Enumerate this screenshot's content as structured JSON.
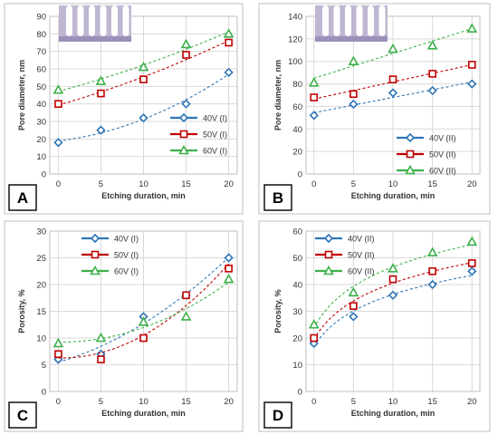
{
  "chart_data": [
    {
      "panel": "A",
      "type": "scatter",
      "xlabel": "Etching duration, min",
      "ylabel": "Pore diameter, nm",
      "xlim": [
        -1,
        21
      ],
      "ylim": [
        0,
        90
      ],
      "xticks": [
        0,
        5,
        10,
        15,
        20
      ],
      "yticks": [
        0,
        10,
        20,
        30,
        40,
        50,
        60,
        70,
        80,
        90
      ],
      "grid": true,
      "legend": "right",
      "trend": "poly",
      "series": [
        {
          "name": "40V (I)",
          "color": "#2e75b6",
          "marker": "diamond",
          "x": [
            0,
            5,
            10,
            15,
            20
          ],
          "y": [
            18,
            25,
            32,
            40,
            58
          ]
        },
        {
          "name": "50V (I)",
          "color": "#c00000",
          "marker": "square",
          "x": [
            0,
            5,
            10,
            15,
            20
          ],
          "y": [
            40,
            46,
            54,
            68,
            75
          ]
        },
        {
          "name": "60V (I)",
          "color": "#3cb04a",
          "marker": "triangle",
          "x": [
            0,
            5,
            10,
            15,
            20
          ],
          "y": [
            48,
            53,
            61,
            74,
            80
          ]
        }
      ]
    },
    {
      "panel": "B",
      "type": "scatter",
      "xlabel": "Etching duration, min",
      "ylabel": "Pore diameter, nm",
      "xlim": [
        -1,
        21
      ],
      "ylim": [
        0,
        140
      ],
      "xticks": [
        0,
        5,
        10,
        15,
        20
      ],
      "yticks": [
        0,
        20,
        40,
        60,
        80,
        100,
        120,
        140
      ],
      "grid": true,
      "legend": "bottom-right",
      "trend": "linear",
      "series": [
        {
          "name": "40V (II)",
          "color": "#2e75b6",
          "marker": "diamond",
          "x": [
            0,
            5,
            10,
            15,
            20
          ],
          "y": [
            52,
            62,
            72,
            74,
            80
          ]
        },
        {
          "name": "50V (II)",
          "color": "#c00000",
          "marker": "square",
          "x": [
            0,
            5,
            10,
            15,
            20
          ],
          "y": [
            68,
            71,
            84,
            89,
            97
          ]
        },
        {
          "name": "60V (II)",
          "color": "#3cb04a",
          "marker": "triangle",
          "x": [
            0,
            5,
            10,
            15,
            20
          ],
          "y": [
            81,
            100,
            111,
            114,
            129
          ]
        }
      ]
    },
    {
      "panel": "C",
      "type": "scatter",
      "xlabel": "Etching duration, min",
      "ylabel": "Porosity, %",
      "xlim": [
        -1,
        21
      ],
      "ylim": [
        0,
        30
      ],
      "xticks": [
        0,
        5,
        10,
        15,
        20
      ],
      "yticks": [
        0,
        5,
        10,
        15,
        20,
        25,
        30
      ],
      "grid": true,
      "legend": "top-left",
      "trend": "poly",
      "series": [
        {
          "name": "40V (I)",
          "color": "#2e75b6",
          "marker": "diamond",
          "x": [
            0,
            5,
            10,
            15,
            20
          ],
          "y": [
            6,
            7,
            14,
            18,
            25
          ]
        },
        {
          "name": "50V (I)",
          "color": "#c00000",
          "marker": "square",
          "x": [
            0,
            5,
            10,
            15,
            20
          ],
          "y": [
            7,
            6,
            10,
            18,
            23
          ]
        },
        {
          "name": "60V (I)",
          "color": "#3cb04a",
          "marker": "triangle",
          "x": [
            0,
            5,
            10,
            15,
            20
          ],
          "y": [
            9,
            10,
            13,
            14,
            21
          ]
        }
      ]
    },
    {
      "panel": "D",
      "type": "scatter",
      "xlabel": "Etching duration, min",
      "ylabel": "Porosity, %",
      "xlim": [
        -1,
        21
      ],
      "ylim": [
        0,
        60
      ],
      "xticks": [
        0,
        5,
        10,
        15,
        20
      ],
      "yticks": [
        0,
        10,
        20,
        30,
        40,
        50,
        60
      ],
      "grid": true,
      "legend": "top-left",
      "trend": "log",
      "series": [
        {
          "name": "40V (II)",
          "color": "#2e75b6",
          "marker": "diamond",
          "x": [
            0,
            5,
            10,
            15,
            20
          ],
          "y": [
            18,
            28,
            36,
            40,
            45
          ]
        },
        {
          "name": "50V (II)",
          "color": "#c00000",
          "marker": "square",
          "x": [
            0,
            5,
            10,
            15,
            20
          ],
          "y": [
            20,
            32,
            42,
            45,
            48
          ]
        },
        {
          "name": "60V (II)",
          "color": "#3cb04a",
          "marker": "triangle",
          "x": [
            0,
            5,
            10,
            15,
            20
          ],
          "y": [
            25,
            37,
            46,
            52,
            56
          ]
        }
      ]
    }
  ]
}
